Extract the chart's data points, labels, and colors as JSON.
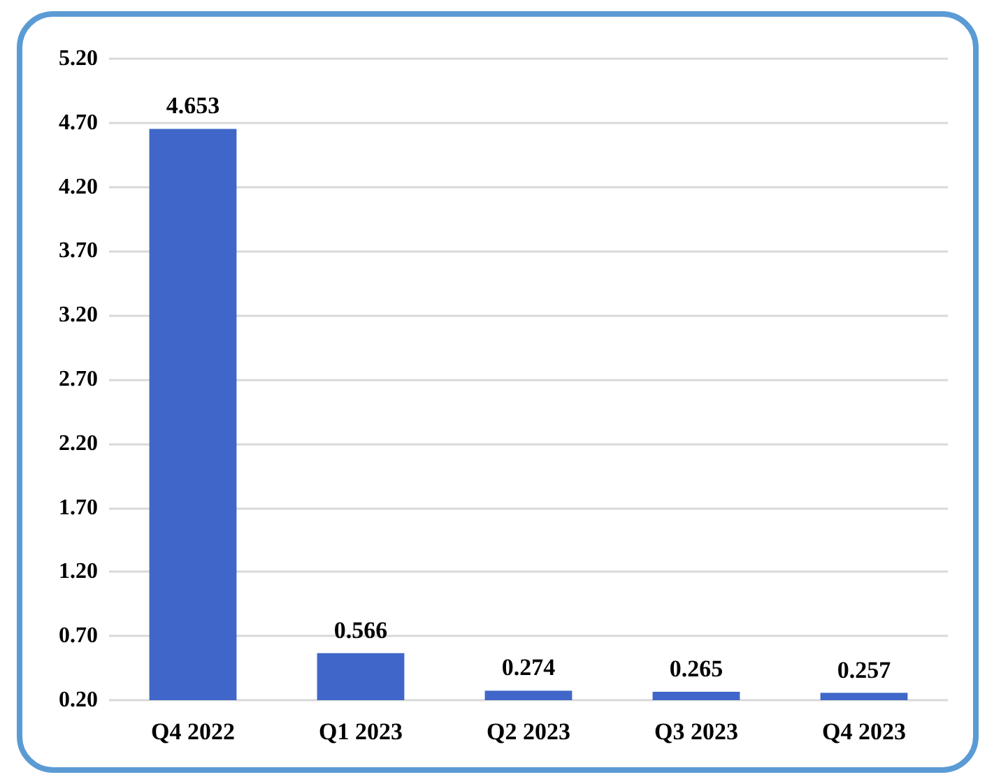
{
  "chart_data": {
    "type": "bar",
    "categories": [
      "Q4 2022",
      "Q1 2023",
      "Q2 2023",
      "Q3 2023",
      "Q4 2023"
    ],
    "values": [
      4.653,
      0.566,
      0.274,
      0.265,
      0.257
    ],
    "color": "#3f66c8",
    "ylim": [
      0.2,
      5.2
    ],
    "yticks": [
      {
        "value": 0.2,
        "label": "0.20"
      },
      {
        "value": 0.7,
        "label": "0.70"
      },
      {
        "value": 1.2,
        "label": "1.20"
      },
      {
        "value": 1.7,
        "label": "1.70"
      },
      {
        "value": 2.2,
        "label": "2.20"
      },
      {
        "value": 2.7,
        "label": "2.70"
      },
      {
        "value": 3.2,
        "label": "3.20"
      },
      {
        "value": 3.7,
        "label": "3.70"
      },
      {
        "value": 4.2,
        "label": "4.20"
      },
      {
        "value": 4.7,
        "label": "4.70"
      },
      {
        "value": 5.2,
        "label": "5.20"
      }
    ],
    "data_labels": true,
    "grid": "y"
  }
}
